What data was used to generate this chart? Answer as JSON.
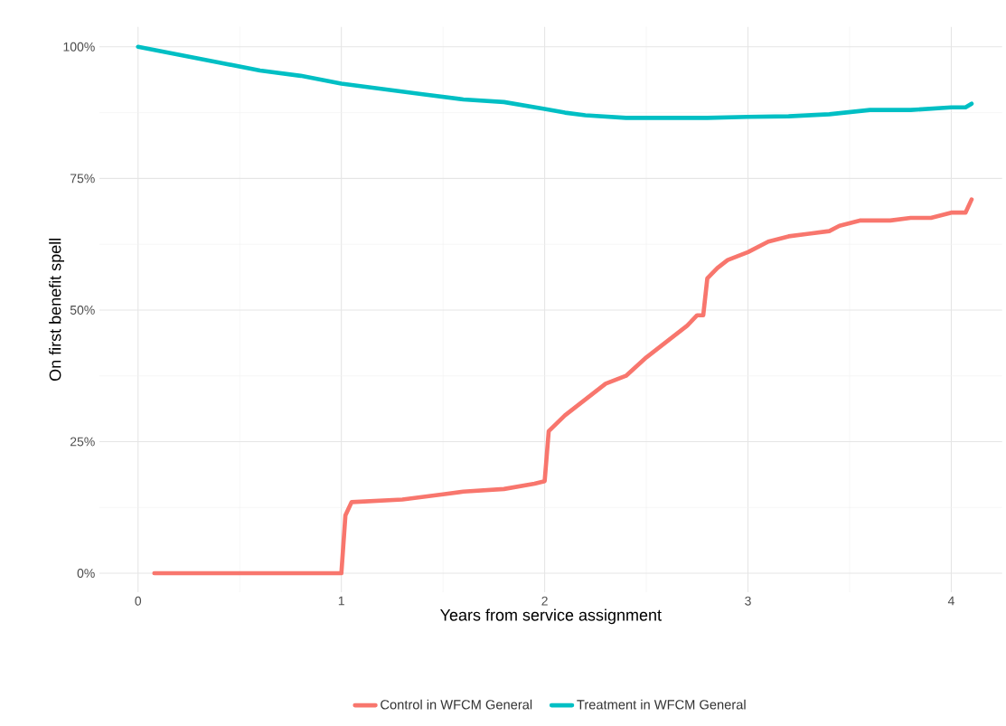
{
  "chart_data": {
    "type": "line",
    "xlabel": "Years from service assignment",
    "ylabel": "On first benefit spell",
    "xlim": [
      -0.19,
      4.25
    ],
    "ylim": [
      -3.6,
      103.8
    ],
    "xticks": [
      0,
      1,
      2,
      3,
      4
    ],
    "yticks": [
      {
        "value": 0,
        "label": "0%"
      },
      {
        "value": 25,
        "label": "25%"
      },
      {
        "value": 50,
        "label": "50%"
      },
      {
        "value": 75,
        "label": "75%"
      },
      {
        "value": 100,
        "label": "100%"
      }
    ],
    "grid": true,
    "legend": "bottom",
    "marker": "none",
    "line_style": "solid",
    "series": [
      {
        "name": "Control in WFCM General",
        "color": "#f8766d",
        "x": [
          0.08,
          0.5,
          1.0,
          1.02,
          1.05,
          1.3,
          1.5,
          1.6,
          1.8,
          1.95,
          2.0,
          2.02,
          2.1,
          2.2,
          2.3,
          2.4,
          2.5,
          2.6,
          2.7,
          2.75,
          2.78,
          2.8,
          2.85,
          2.9,
          3.0,
          3.1,
          3.2,
          3.3,
          3.4,
          3.45,
          3.55,
          3.7,
          3.8,
          3.9,
          4.0,
          4.07,
          4.1
        ],
        "values": [
          0,
          0,
          0,
          11,
          13.5,
          14,
          15,
          15.5,
          16,
          17,
          17.5,
          27,
          30,
          33,
          36,
          37.5,
          41,
          44,
          47,
          49,
          49,
          56,
          58,
          59.5,
          61,
          63,
          64,
          64.5,
          65,
          66,
          67,
          67,
          67.5,
          67.5,
          68.5,
          68.5,
          71
        ]
      },
      {
        "name": "Treatment in WFCM General",
        "color": "#00bfc4",
        "x": [
          0,
          0.2,
          0.4,
          0.6,
          0.8,
          1.0,
          1.2,
          1.4,
          1.6,
          1.8,
          2.0,
          2.1,
          2.2,
          2.4,
          2.6,
          2.8,
          3.0,
          3.2,
          3.4,
          3.6,
          3.8,
          4.0,
          4.07,
          4.1
        ],
        "values": [
          100,
          98.5,
          97,
          95.5,
          94.5,
          93,
          92,
          91,
          90,
          89.5,
          88.2,
          87.5,
          87,
          86.5,
          86.5,
          86.5,
          86.7,
          86.8,
          87.2,
          88,
          88,
          88.5,
          88.5,
          89.2
        ]
      }
    ]
  }
}
